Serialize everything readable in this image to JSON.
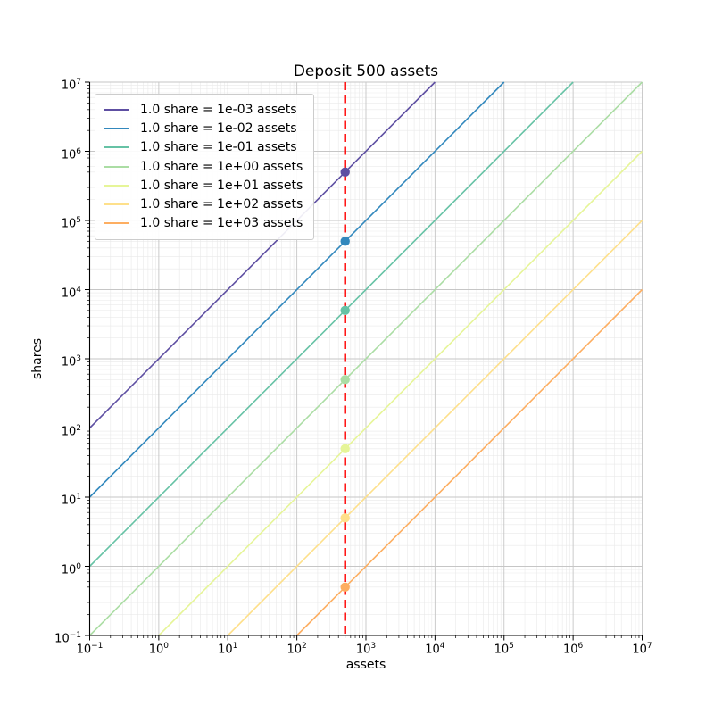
{
  "chart_data": {
    "type": "line",
    "title": "Deposit 500 assets",
    "xlabel": "assets",
    "ylabel": "shares",
    "xscale": "log",
    "yscale": "log",
    "xlim": [
      0.1,
      10000000
    ],
    "ylim": [
      0.1,
      10000000
    ],
    "tick_exponents": [
      -1,
      0,
      1,
      2,
      3,
      4,
      5,
      6,
      7
    ],
    "grid": {
      "major": true,
      "minor": true,
      "major_color": "#c6c6c6",
      "minor_color": "#e9e9e9"
    },
    "axis_color": "#000000",
    "legend_position": "upper left",
    "deposit_assets": 500,
    "vline": {
      "x": 500,
      "color": "#ff0000",
      "linestyle": "dashed",
      "linewidth": 2.4
    },
    "series": [
      {
        "label": "1.0 share = 1e-03 assets",
        "assets_per_share": 0.001,
        "color": "#5e4fa2",
        "marker": {
          "assets": 500,
          "shares": 500000
        }
      },
      {
        "label": "1.0 share = 1e-02 assets",
        "assets_per_share": 0.01,
        "color": "#3288bd",
        "marker": {
          "assets": 500,
          "shares": 50000
        }
      },
      {
        "label": "1.0 share = 1e-01 assets",
        "assets_per_share": 0.1,
        "color": "#66c2a5",
        "marker": {
          "assets": 500,
          "shares": 5000
        }
      },
      {
        "label": "1.0 share = 1e+00 assets",
        "assets_per_share": 1,
        "color": "#abdda4",
        "marker": {
          "assets": 500,
          "shares": 500
        }
      },
      {
        "label": "1.0 share = 1e+01 assets",
        "assets_per_share": 10,
        "color": "#e6f598",
        "marker": {
          "assets": 500,
          "shares": 50
        }
      },
      {
        "label": "1.0 share = 1e+02 assets",
        "assets_per_share": 100,
        "color": "#fee08b",
        "marker": {
          "assets": 500,
          "shares": 5
        }
      },
      {
        "label": "1.0 share = 1e+03 assets",
        "assets_per_share": 1000,
        "color": "#fdae61",
        "marker": {
          "assets": 500,
          "shares": 0.5
        }
      }
    ]
  }
}
